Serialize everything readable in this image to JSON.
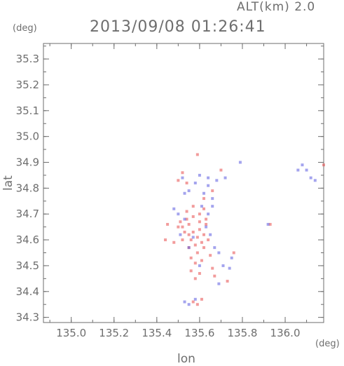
{
  "chart_data": {
    "type": "scatter",
    "title": "2013/09/08 01:26:41",
    "subtitle": "ALT(km) 2.0",
    "xlabel": "lon",
    "ylabel": "lat",
    "x_unit": "(deg)",
    "y_unit": "(deg)",
    "xlim": [
      134.87,
      136.18
    ],
    "ylim": [
      34.28,
      35.36
    ],
    "xticks": [
      135.0,
      135.2,
      135.4,
      135.6,
      135.8,
      136.0
    ],
    "xtick_labels": [
      "135.0",
      "135.2",
      "135.4",
      "135.6",
      "135.8",
      "136.0"
    ],
    "yticks": [
      34.3,
      34.4,
      34.5,
      34.6,
      34.7,
      34.8,
      34.9,
      35.0,
      35.1,
      35.2,
      35.3
    ],
    "ytick_labels": [
      "34.3",
      "34.4",
      "34.5",
      "34.6",
      "34.7",
      "34.8",
      "34.9",
      "35.0",
      "35.1",
      "35.2",
      "35.3"
    ],
    "colors": {
      "positive": "#e84a4a",
      "negative": "#5a5ae0",
      "axis": "#6e6e6e"
    },
    "series": [
      {
        "color": "red",
        "points": [
          [
            135.52,
            34.65
          ],
          [
            135.55,
            34.66
          ],
          [
            135.57,
            34.63
          ],
          [
            135.59,
            34.61
          ],
          [
            135.6,
            34.64
          ],
          [
            135.62,
            34.62
          ],
          [
            135.56,
            34.6
          ],
          [
            135.58,
            34.58
          ],
          [
            135.61,
            34.59
          ],
          [
            135.63,
            34.66
          ],
          [
            135.54,
            34.68
          ],
          [
            135.53,
            34.63
          ],
          [
            135.51,
            34.67
          ],
          [
            135.57,
            34.69
          ],
          [
            135.6,
            34.7
          ],
          [
            135.62,
            34.57
          ],
          [
            135.59,
            34.55
          ],
          [
            135.56,
            34.53
          ],
          [
            135.58,
            34.51
          ],
          [
            135.55,
            34.57
          ],
          [
            135.52,
            34.6
          ],
          [
            135.5,
            34.65
          ],
          [
            135.48,
            34.59
          ],
          [
            135.64,
            34.6
          ],
          [
            135.65,
            34.54
          ],
          [
            135.66,
            34.49
          ],
          [
            135.67,
            34.46
          ],
          [
            135.6,
            34.47
          ],
          [
            135.58,
            34.45
          ],
          [
            135.56,
            34.48
          ],
          [
            135.54,
            34.71
          ],
          [
            135.57,
            34.73
          ],
          [
            135.62,
            34.72
          ],
          [
            135.45,
            34.66
          ],
          [
            135.44,
            34.6
          ],
          [
            135.59,
            34.93
          ],
          [
            135.57,
            34.36
          ],
          [
            135.59,
            34.35
          ],
          [
            135.61,
            34.37
          ],
          [
            135.5,
            34.83
          ],
          [
            135.52,
            34.86
          ],
          [
            135.54,
            34.82
          ],
          [
            135.62,
            34.76
          ],
          [
            135.66,
            34.79
          ],
          [
            135.7,
            34.87
          ],
          [
            135.73,
            34.44
          ],
          [
            135.76,
            34.55
          ],
          [
            135.93,
            34.66
          ],
          [
            136.18,
            34.89
          ],
          [
            135.63,
            34.68
          ],
          [
            135.55,
            34.62
          ],
          [
            135.6,
            34.67
          ],
          [
            135.61,
            34.52
          ]
        ]
      },
      {
        "color": "blue",
        "points": [
          [
            135.52,
            34.84
          ],
          [
            135.55,
            34.79
          ],
          [
            135.58,
            34.82
          ],
          [
            135.62,
            34.78
          ],
          [
            135.64,
            34.81
          ],
          [
            135.66,
            34.76
          ],
          [
            135.68,
            34.83
          ],
          [
            135.72,
            34.84
          ],
          [
            135.79,
            34.9
          ],
          [
            136.08,
            34.89
          ],
          [
            136.1,
            34.87
          ],
          [
            136.12,
            34.84
          ],
          [
            136.14,
            34.83
          ],
          [
            136.06,
            34.87
          ],
          [
            135.61,
            34.73
          ],
          [
            135.64,
            34.7
          ],
          [
            135.66,
            34.73
          ],
          [
            135.63,
            34.65
          ],
          [
            135.65,
            34.62
          ],
          [
            135.53,
            34.68
          ],
          [
            135.5,
            34.7
          ],
          [
            135.67,
            34.57
          ],
          [
            135.69,
            34.55
          ],
          [
            135.71,
            34.5
          ],
          [
            135.74,
            34.49
          ],
          [
            135.6,
            34.5
          ],
          [
            135.55,
            34.57
          ],
          [
            135.51,
            34.62
          ],
          [
            135.53,
            34.36
          ],
          [
            135.55,
            34.35
          ],
          [
            135.58,
            34.37
          ],
          [
            135.69,
            34.43
          ],
          [
            135.92,
            34.66
          ],
          [
            135.75,
            34.53
          ],
          [
            135.53,
            34.78
          ],
          [
            135.6,
            34.85
          ],
          [
            135.64,
            34.84
          ],
          [
            135.57,
            34.61
          ],
          [
            135.48,
            34.72
          ]
        ]
      }
    ]
  }
}
